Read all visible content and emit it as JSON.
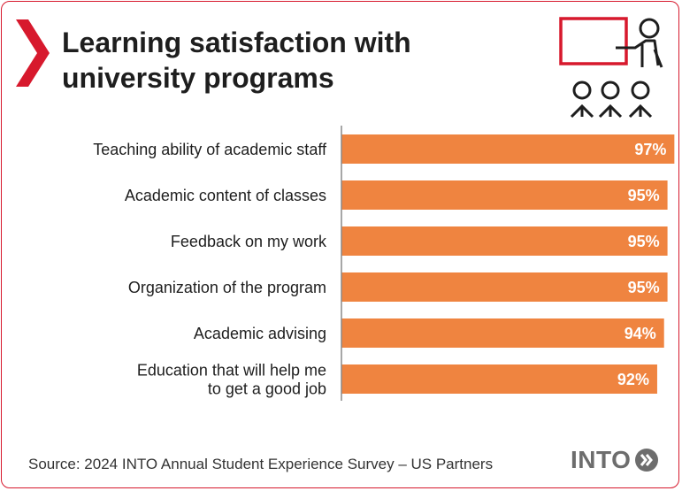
{
  "title_lines": [
    "Learning satisfaction with",
    "university programs"
  ],
  "source": "Source: 2024 INTO Annual Student Experience Survey – US Partners",
  "logo_text": "INTO",
  "colors": {
    "bar": "#ef8440",
    "border": "#d7192d",
    "text": "#1e1e1e",
    "axis": "#8a8a8a",
    "logo": "#6d6d6d"
  },
  "icons": [
    "chevron-right-icon",
    "classroom-presentation-icon",
    "into-logo-icon"
  ],
  "chart_data": {
    "type": "bar",
    "orientation": "horizontal",
    "categories": [
      [
        "Teaching ability of academic staff"
      ],
      [
        "Academic content of classes"
      ],
      [
        "Feedback on my work"
      ],
      [
        "Organization of the program"
      ],
      [
        "Academic advising"
      ],
      [
        "Education that will help me",
        "to get a good job"
      ]
    ],
    "values": [
      97,
      95,
      95,
      95,
      94,
      92
    ],
    "value_labels": [
      "97%",
      "95%",
      "95%",
      "95%",
      "94%",
      "92%"
    ],
    "xlim": [
      0,
      100
    ],
    "title": "Learning satisfaction with university programs",
    "grid": false
  }
}
